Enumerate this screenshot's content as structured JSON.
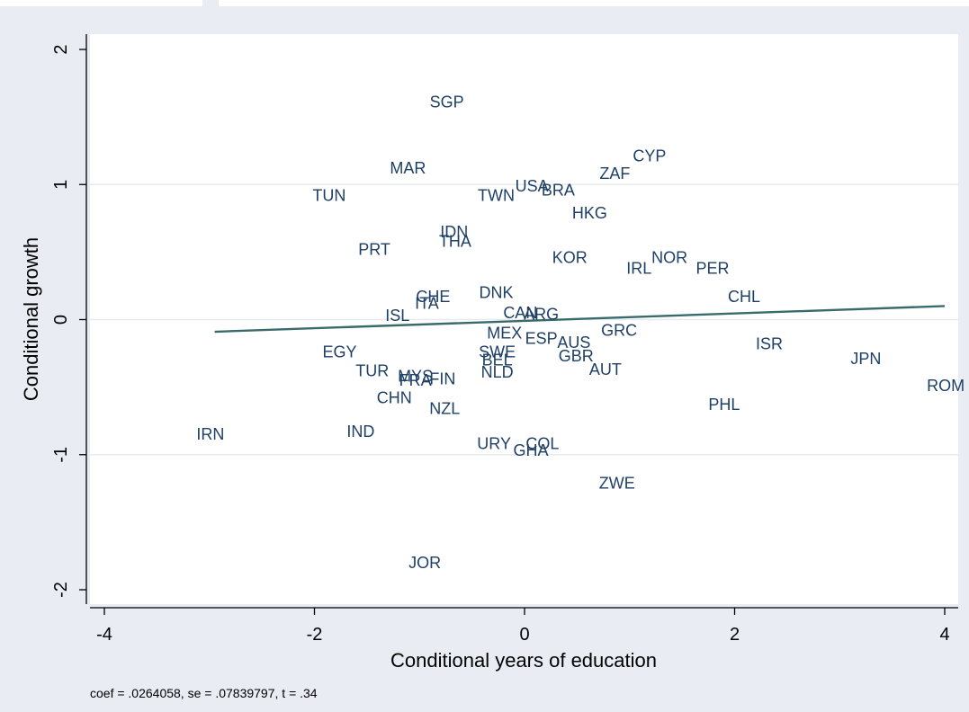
{
  "chart_data": {
    "type": "scatter",
    "xlabel": "Conditional years of education",
    "ylabel": "Conditional growth",
    "xlim": [
      -4,
      4
    ],
    "ylim": [
      -2,
      2
    ],
    "xticks": [
      "-4",
      "-2",
      "0",
      "2",
      "4"
    ],
    "yticks": [
      "-2",
      "-1",
      "0",
      "1",
      "2"
    ],
    "grid": "horizontal",
    "fit_line": {
      "x": [
        -2.95,
        4.0
      ],
      "y": [
        -0.09,
        0.1
      ],
      "color": "#3a6b6b"
    },
    "point_color": "#1e3f66",
    "points": [
      {
        "label": "SGP",
        "x": -0.74,
        "y": 1.61
      },
      {
        "label": "CYP",
        "x": 1.19,
        "y": 1.21
      },
      {
        "label": "MAR",
        "x": -1.11,
        "y": 1.12
      },
      {
        "label": "ZAF",
        "x": 0.86,
        "y": 1.08
      },
      {
        "label": "TUN",
        "x": -1.86,
        "y": 0.92
      },
      {
        "label": "TWN",
        "x": -0.27,
        "y": 0.92
      },
      {
        "label": "USA",
        "x": 0.07,
        "y": 0.99
      },
      {
        "label": "BRA",
        "x": 0.32,
        "y": 0.96
      },
      {
        "label": "HKG",
        "x": 0.62,
        "y": 0.79
      },
      {
        "label": "IDN",
        "x": -0.67,
        "y": 0.65
      },
      {
        "label": "THA",
        "x": -0.66,
        "y": 0.58
      },
      {
        "label": "PRT",
        "x": -1.43,
        "y": 0.52
      },
      {
        "label": "KOR",
        "x": 0.43,
        "y": 0.46
      },
      {
        "label": "NOR",
        "x": 1.38,
        "y": 0.46
      },
      {
        "label": "IRL",
        "x": 1.09,
        "y": 0.38
      },
      {
        "label": "PER",
        "x": 1.79,
        "y": 0.38
      },
      {
        "label": "CHL",
        "x": 2.09,
        "y": 0.17
      },
      {
        "label": "DNK",
        "x": -0.27,
        "y": 0.2
      },
      {
        "label": "CHE",
        "x": -0.87,
        "y": 0.17
      },
      {
        "label": "ITA",
        "x": -0.93,
        "y": 0.12
      },
      {
        "label": "CAN",
        "x": -0.04,
        "y": 0.05
      },
      {
        "label": "ARG",
        "x": 0.16,
        "y": 0.04
      },
      {
        "label": "ISL",
        "x": -1.21,
        "y": 0.03
      },
      {
        "label": "MEX",
        "x": -0.19,
        "y": -0.1
      },
      {
        "label": "GRC",
        "x": 0.9,
        "y": -0.08
      },
      {
        "label": "ESP",
        "x": 0.16,
        "y": -0.14
      },
      {
        "label": "AUS",
        "x": 0.47,
        "y": -0.17
      },
      {
        "label": "ISR",
        "x": 2.33,
        "y": -0.18
      },
      {
        "label": "EGY",
        "x": -1.76,
        "y": -0.24
      },
      {
        "label": "SWE",
        "x": -0.26,
        "y": -0.24
      },
      {
        "label": "BEL",
        "x": -0.26,
        "y": -0.3
      },
      {
        "label": "GBR",
        "x": 0.49,
        "y": -0.27
      },
      {
        "label": "JPN",
        "x": 3.25,
        "y": -0.29
      },
      {
        "label": "AUT",
        "x": 0.77,
        "y": -0.37
      },
      {
        "label": "TUR",
        "x": -1.45,
        "y": -0.38
      },
      {
        "label": "NLD",
        "x": -0.26,
        "y": -0.39
      },
      {
        "label": "MYS",
        "x": -1.04,
        "y": -0.42
      },
      {
        "label": "FRA",
        "x": -1.04,
        "y": -0.45
      },
      {
        "label": "FIN",
        "x": -0.78,
        "y": -0.44
      },
      {
        "label": "ROM",
        "x": 4.01,
        "y": -0.49
      },
      {
        "label": "CHN",
        "x": -1.24,
        "y": -0.58
      },
      {
        "label": "PHL",
        "x": 1.9,
        "y": -0.63
      },
      {
        "label": "NZL",
        "x": -0.76,
        "y": -0.66
      },
      {
        "label": "IRN",
        "x": -2.99,
        "y": -0.85
      },
      {
        "label": "IND",
        "x": -1.56,
        "y": -0.83
      },
      {
        "label": "URY",
        "x": -0.29,
        "y": -0.92
      },
      {
        "label": "COL",
        "x": 0.17,
        "y": -0.92
      },
      {
        "label": "GHA",
        "x": 0.06,
        "y": -0.97
      },
      {
        "label": "ZWE",
        "x": 0.88,
        "y": -1.21
      },
      {
        "label": "JOR",
        "x": -0.95,
        "y": -1.8
      }
    ]
  },
  "footnote": "coef = .0264058, se = .07839797, t = .34"
}
